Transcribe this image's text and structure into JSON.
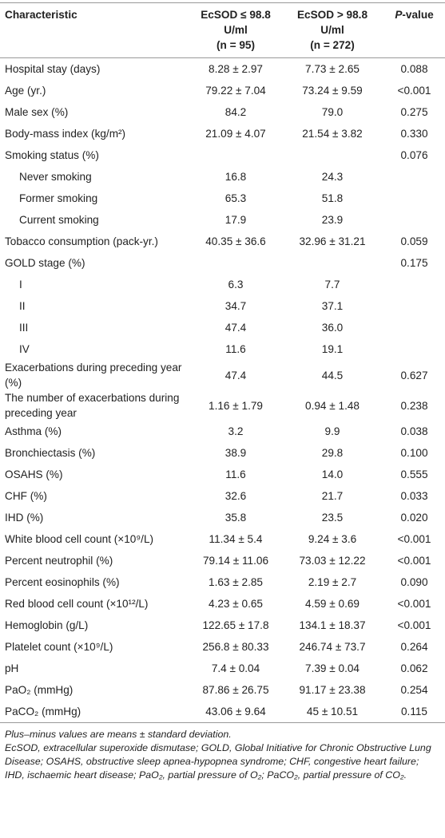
{
  "table": {
    "columns": {
      "characteristic": "Characteristic",
      "low": [
        "EcSOD ≤ 98.8",
        "U/ml",
        "(n = 95)"
      ],
      "high": [
        "EcSOD > 98.8",
        "U/ml",
        "(n = 272)"
      ],
      "p": "P-value"
    },
    "rows": [
      {
        "characteristic": "Hospital stay (days)",
        "low": "8.28 ± 2.97",
        "high": "7.73 ± 2.65",
        "p": "0.088"
      },
      {
        "characteristic": "Age (yr.)",
        "low": "79.22 ± 7.04",
        "high": "73.24 ± 9.59",
        "p": "<0.001"
      },
      {
        "characteristic": "Male sex (%)",
        "low": "84.2",
        "high": "79.0",
        "p": "0.275"
      },
      {
        "characteristic": "Body-mass index (kg/m²)",
        "low": "21.09 ± 4.07",
        "high": "21.54 ± 3.82",
        "p": "0.330"
      },
      {
        "characteristic": "Smoking status (%)",
        "p": "0.076"
      },
      {
        "characteristic": "Never smoking",
        "low": "16.8",
        "high": "24.3",
        "indent": true
      },
      {
        "characteristic": "Former smoking",
        "low": "65.3",
        "high": "51.8",
        "indent": true
      },
      {
        "characteristic": "Current smoking",
        "low": "17.9",
        "high": "23.9",
        "indent": true
      },
      {
        "characteristic": "Tobacco consumption (pack-yr.)",
        "low": "40.35 ± 36.6",
        "high": "32.96 ± 31.21",
        "p": "0.059"
      },
      {
        "characteristic": "GOLD stage (%)",
        "p": "0.175"
      },
      {
        "characteristic": "I",
        "low": "6.3",
        "high": "7.7",
        "indent": true
      },
      {
        "characteristic": "II",
        "low": "34.7",
        "high": "37.1",
        "indent": true
      },
      {
        "characteristic": "III",
        "low": "47.4",
        "high": "36.0",
        "indent": true
      },
      {
        "characteristic": "IV",
        "low": "11.6",
        "high": "19.1",
        "indent": true
      },
      {
        "characteristic": "Exacerbations during preceding year (%)",
        "low": "47.4",
        "high": "44.5",
        "p": "0.627"
      },
      {
        "characteristic": "The number of exacerbations during preceding year",
        "low": "1.16 ± 1.79",
        "high": "0.94 ± 1.48",
        "p": "0.238"
      },
      {
        "characteristic": "Asthma (%)",
        "low": "3.2",
        "high": "9.9",
        "p": "0.038"
      },
      {
        "characteristic": "Bronchiectasis (%)",
        "low": "38.9",
        "high": "29.8",
        "p": "0.100"
      },
      {
        "characteristic": "OSAHS (%)",
        "low": "11.6",
        "high": "14.0",
        "p": "0.555"
      },
      {
        "characteristic": "CHF (%)",
        "low": "32.6",
        "high": "21.7",
        "p": "0.033"
      },
      {
        "characteristic": "IHD (%)",
        "low": "35.8",
        "high": "23.5",
        "p": "0.020"
      },
      {
        "characteristic": "White blood cell count (×10⁹/L)",
        "low": "11.34 ± 5.4",
        "high": "9.24 ± 3.6",
        "p": "<0.001"
      },
      {
        "characteristic": "Percent neutrophil (%)",
        "low": "79.14 ± 11.06",
        "high": "73.03 ± 12.22",
        "p": "<0.001"
      },
      {
        "characteristic": "Percent eosinophils (%)",
        "low": "1.63 ± 2.85",
        "high": "2.19 ± 2.7",
        "p": "0.090"
      },
      {
        "characteristic": "Red blood cell count (×10¹²/L)",
        "low": "4.23 ± 0.65",
        "high": "4.59 ± 0.69",
        "p": "<0.001"
      },
      {
        "characteristic": "Hemoglobin (g/L)",
        "low": "122.65 ± 17.8",
        "high": "134.1 ± 18.37",
        "p": "<0.001"
      },
      {
        "characteristic": "Platelet count (×10⁹/L)",
        "low": "256.8 ± 80.33",
        "high": "246.74 ± 73.7",
        "p": "0.264"
      },
      {
        "characteristic": "pH",
        "low": "7.4 ± 0.04",
        "high": "7.39 ± 0.04",
        "p": "0.062"
      },
      {
        "characteristic": "PaO₂ (mmHg)",
        "low": "87.86 ± 26.75",
        "high": "91.17 ± 23.38",
        "p": "0.254"
      },
      {
        "characteristic": "PaCO₂ (mmHg)",
        "low": "43.06 ± 9.64",
        "high": "45 ± 10.51",
        "p": "0.115"
      }
    ]
  },
  "footnotes": [
    "Plus–minus values are means ± standard deviation.",
    "EcSOD, extracellular superoxide dismutase; GOLD, Global Initiative for Chronic Obstructive Lung Disease; OSAHS, obstructive sleep apnea-hypopnea syndrome; CHF, congestive heart failure; IHD, ischaemic heart disease; PaO₂, partial pressure of O₂; PaCO₂, partial pressure of CO₂."
  ]
}
